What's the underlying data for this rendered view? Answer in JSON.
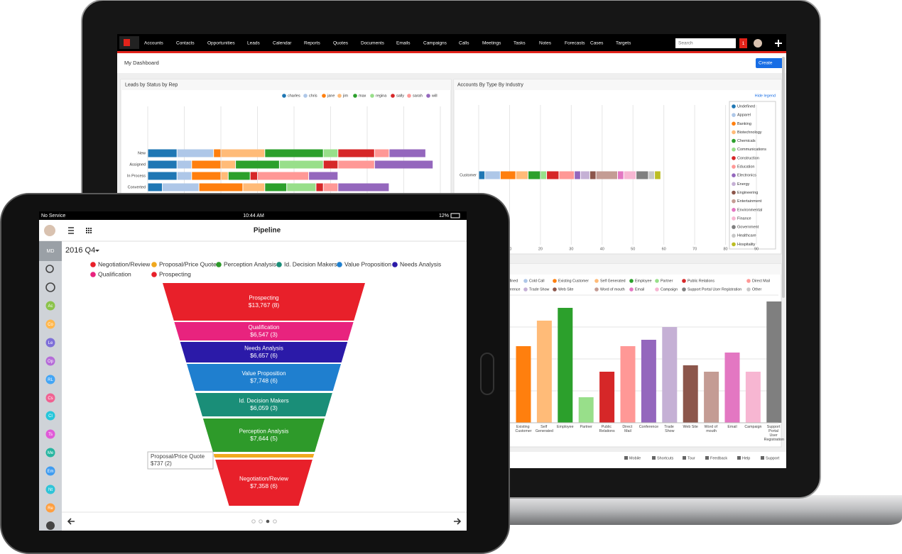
{
  "laptop": {
    "nav": [
      "Accounts",
      "Contacts",
      "Opportunities",
      "Leads",
      "Calendar",
      "Reports",
      "Quotes",
      "Documents",
      "Emails",
      "Campaigns",
      "Calls",
      "Meetings",
      "Tasks",
      "Notes",
      "Forecasts",
      "Cases",
      "Targets"
    ],
    "search_placeholder": "Search",
    "notifications": "1",
    "page_title": "My Dashboard",
    "create_button": "Create",
    "hide_legend": "Hide legend",
    "footer": [
      "Mobile",
      "Shortcuts",
      "Tour",
      "Feedback",
      "Help",
      "Support"
    ]
  },
  "tablet": {
    "carrier": "No Service",
    "time": "10:44 AM",
    "battery": "12%",
    "title": "Pipeline",
    "user_initials": "MD",
    "period": "2016 Q4",
    "modules": [
      {
        "label": "Ac",
        "color": "#8bc34a"
      },
      {
        "label": "Co",
        "color": "#ffb74d"
      },
      {
        "label": "Le",
        "color": "#7e6fd8"
      },
      {
        "label": "Op",
        "color": "#b56cd8"
      },
      {
        "label": "RL",
        "color": "#42a5f5"
      },
      {
        "label": "Cs",
        "color": "#f06292"
      },
      {
        "label": "Cl",
        "color": "#26c6da"
      },
      {
        "label": "Ts",
        "color": "#e05ad8"
      },
      {
        "label": "Me",
        "color": "#26b5a0"
      },
      {
        "label": "Em",
        "color": "#3f9cf0"
      },
      {
        "label": "Nt",
        "color": "#2ec4d8"
      },
      {
        "label": "Re",
        "color": "#ff9f40"
      }
    ]
  },
  "chart_data": [
    {
      "type": "hbar-stacked",
      "title": "Leads by Status by Rep",
      "categories": [
        "New",
        "Assigned",
        "In Process",
        "Converted"
      ],
      "series": [
        {
          "name": "charles",
          "color": "#1f77b4",
          "values": [
            4,
            4,
            4,
            2
          ]
        },
        {
          "name": "chris",
          "color": "#aec7e8",
          "values": [
            5,
            2,
            2,
            5
          ]
        },
        {
          "name": "jane",
          "color": "#ff7f0e",
          "values": [
            1,
            4,
            4,
            6
          ]
        },
        {
          "name": "jim",
          "color": "#ffbb78",
          "values": [
            6,
            2,
            1,
            3
          ]
        },
        {
          "name": "max",
          "color": "#2ca02c",
          "values": [
            8,
            6,
            3,
            3
          ]
        },
        {
          "name": "regina",
          "color": "#98df8a",
          "values": [
            2,
            6,
            0,
            4
          ]
        },
        {
          "name": "sally",
          "color": "#d62728",
          "values": [
            5,
            2,
            1,
            1
          ]
        },
        {
          "name": "sarah",
          "color": "#ff9896",
          "values": [
            2,
            5,
            7,
            2
          ]
        },
        {
          "name": "will",
          "color": "#9467bd",
          "values": [
            5,
            8,
            4,
            7
          ]
        }
      ],
      "xlim": [
        0,
        40
      ],
      "xticks": [
        0,
        5,
        10,
        15,
        20,
        25,
        30,
        35,
        40
      ],
      "grid": true
    },
    {
      "type": "hbar-stacked",
      "title": "Accounts By Type By Industry",
      "categories": [
        "Customer"
      ],
      "series": [
        {
          "name": "Undefined",
          "color": "#1f77b4",
          "values": [
            2
          ]
        },
        {
          "name": "Apparel",
          "color": "#aec7e8",
          "values": [
            5
          ]
        },
        {
          "name": "Banking",
          "color": "#ff7f0e",
          "values": [
            5
          ]
        },
        {
          "name": "Biotechnology",
          "color": "#ffbb78",
          "values": [
            4
          ]
        },
        {
          "name": "Chemicals",
          "color": "#2ca02c",
          "values": [
            4
          ]
        },
        {
          "name": "Communications",
          "color": "#98df8a",
          "values": [
            2
          ]
        },
        {
          "name": "Construction",
          "color": "#d62728",
          "values": [
            4
          ]
        },
        {
          "name": "Education",
          "color": "#ff9896",
          "values": [
            5
          ]
        },
        {
          "name": "Electronics",
          "color": "#9467bd",
          "values": [
            2
          ]
        },
        {
          "name": "Energy",
          "color": "#c5b0d5",
          "values": [
            3
          ]
        },
        {
          "name": "Engineering",
          "color": "#8c564b",
          "values": [
            2
          ]
        },
        {
          "name": "Entertainment",
          "color": "#c49c94",
          "values": [
            7
          ]
        },
        {
          "name": "Environmental",
          "color": "#e377c2",
          "values": [
            2
          ]
        },
        {
          "name": "Finance",
          "color": "#f7b6d2",
          "values": [
            4
          ]
        },
        {
          "name": "Government",
          "color": "#7f7f7f",
          "values": [
            4
          ]
        },
        {
          "name": "Healthcare",
          "color": "#c7c7c7",
          "values": [
            2
          ]
        },
        {
          "name": "Hospitality",
          "color": "#bcbd22",
          "values": [
            2
          ]
        }
      ],
      "xlim": [
        0,
        90
      ],
      "xticks": [
        0,
        10,
        20,
        30,
        40,
        50,
        60,
        70,
        80,
        90
      ],
      "grid": true
    },
    {
      "type": "bar",
      "categories": [
        "Existing Customer",
        "Self Generated",
        "Employee",
        "Partner",
        "Public Relations",
        "Direct Mail",
        "Conference",
        "Trade Show",
        "Web Site",
        "Word of mouth",
        "Email",
        "Campaign",
        "Support Portal User Registration"
      ],
      "values": [
        12,
        16,
        18,
        4,
        8,
        12,
        13,
        15,
        9,
        8,
        11,
        8,
        19
      ],
      "colors": [
        "#ff7f0e",
        "#ffbb78",
        "#2ca02c",
        "#98df8a",
        "#d62728",
        "#ff9896",
        "#9467bd",
        "#c5b0d5",
        "#8c564b",
        "#c49c94",
        "#e377c2",
        "#f7b6d2",
        "#7f7f7f"
      ],
      "legend": [
        {
          "name": "Undefined",
          "color": "#1f77b4"
        },
        {
          "name": "Cold Call",
          "color": "#aec7e8"
        },
        {
          "name": "Existing Customer",
          "color": "#ff7f0e"
        },
        {
          "name": "Self Generated",
          "color": "#ffbb78"
        },
        {
          "name": "Employee",
          "color": "#2ca02c"
        },
        {
          "name": "Partner",
          "color": "#98df8a"
        },
        {
          "name": "Public Relations",
          "color": "#d62728"
        },
        {
          "name": "Direct Mail",
          "color": "#ff9896"
        },
        {
          "name": "Conference",
          "color": "#9467bd"
        },
        {
          "name": "Trade Show",
          "color": "#c5b0d5"
        },
        {
          "name": "Web Site",
          "color": "#8c564b"
        },
        {
          "name": "Word of mouth",
          "color": "#c49c94"
        },
        {
          "name": "Email",
          "color": "#e377c2"
        },
        {
          "name": "Campaign",
          "color": "#f7b6d2"
        },
        {
          "name": "Support Portal User Registration",
          "color": "#7f7f7f"
        },
        {
          "name": "Other",
          "color": "#c7c7c7"
        }
      ],
      "ylim": [
        0,
        20
      ],
      "yticks": [
        0,
        5,
        10,
        15,
        20
      ],
      "grid": true
    },
    {
      "type": "funnel",
      "categories": [
        "Prospecting",
        "Qualification",
        "Needs Analysis",
        "Value Proposition",
        "Id. Decision Makers",
        "Perception Analysis",
        "Proposal/Price Quote",
        "Negotiation/Review"
      ],
      "values": [
        13767,
        6547,
        6657,
        7748,
        6059,
        7644,
        737,
        7358
      ],
      "value_labels": [
        "$13,767 (8)",
        "$6,547 (3)",
        "$6,657 (6)",
        "$7,748 (6)",
        "$6,059 (3)",
        "$7,644 (5)",
        "$737 (2)",
        "$7,358 (6)"
      ],
      "colors": [
        "#e8202a",
        "#e8237e",
        "#2b1aa8",
        "#1f7fcf",
        "#1a8e78",
        "#2e9a2a",
        "#f0a81d",
        "#e8202a"
      ]
    }
  ]
}
